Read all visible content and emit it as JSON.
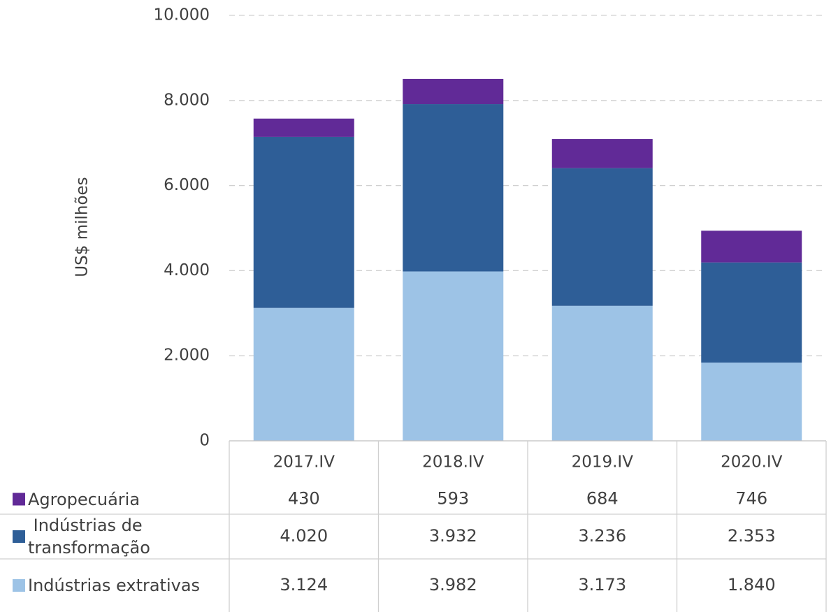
{
  "chart_data": {
    "type": "stacked-bar",
    "y_axis_label": "US$ milhões",
    "categories": [
      "2017.IV",
      "2018.IV",
      "2019.IV",
      "2020.IV"
    ],
    "series": [
      {
        "name": "Agropecuária",
        "color": "#612a97",
        "values": [
          430,
          593,
          684,
          746
        ]
      },
      {
        "name": " Indústrias de transformação",
        "color": "#2e5e97",
        "values": [
          4020,
          3932,
          3236,
          2353
        ],
        "value_labels": [
          "4.020",
          "3.932",
          "3.236",
          "2.353"
        ]
      },
      {
        "name": "Indústrias extrativas",
        "color": "#9dc3e6",
        "values": [
          3124,
          3982,
          3173,
          1840
        ],
        "value_labels": [
          "3.124",
          "3.982",
          "3.173",
          "1.840"
        ]
      }
    ],
    "ylim": [
      0,
      10000
    ],
    "yticks": [
      0,
      {
        "value": 2000,
        "label": "2.000"
      },
      {
        "value": 4000,
        "label": "4.000"
      },
      {
        "value": 6000,
        "label": "6.000"
      },
      {
        "value": 8000,
        "label": "8.000"
      },
      {
        "value": 10000,
        "label": "10.000"
      }
    ],
    "grid": true
  }
}
